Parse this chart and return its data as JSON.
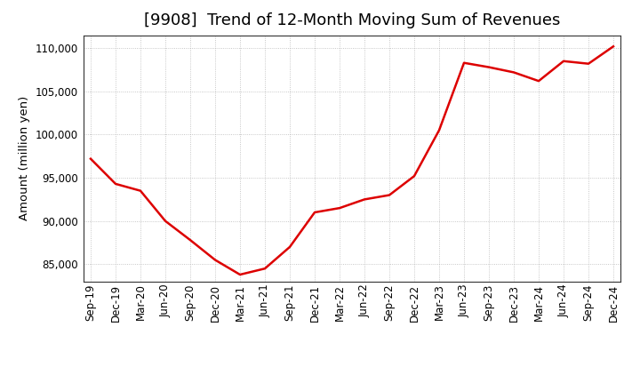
{
  "title": "[9908]  Trend of 12-Month Moving Sum of Revenues",
  "ylabel": "Amount (million yen)",
  "background_color": "#ffffff",
  "plot_background_color": "#ffffff",
  "line_color": "#dd0000",
  "line_width": 1.8,
  "x_labels": [
    "Sep-19",
    "Dec-19",
    "Mar-20",
    "Jun-20",
    "Sep-20",
    "Dec-20",
    "Mar-21",
    "Jun-21",
    "Sep-21",
    "Dec-21",
    "Mar-22",
    "Jun-22",
    "Sep-22",
    "Dec-22",
    "Mar-23",
    "Jun-23",
    "Sep-23",
    "Dec-23",
    "Mar-24",
    "Jun-24",
    "Sep-24",
    "Dec-24"
  ],
  "y_values": [
    97200,
    94300,
    93500,
    90000,
    87800,
    85500,
    83800,
    84500,
    87000,
    91000,
    91500,
    92500,
    93000,
    95200,
    100500,
    108300,
    107800,
    107200,
    106200,
    108500,
    108200,
    110200
  ],
  "ylim": [
    83000,
    111500
  ],
  "yticks": [
    85000,
    90000,
    95000,
    100000,
    105000,
    110000
  ],
  "ytick_labels": [
    "85,000",
    "90,000",
    "95,000",
    "100,000",
    "105,000",
    "110,000"
  ],
  "grid_color": "#999999",
  "title_fontsize": 13,
  "tick_fontsize": 8.5,
  "ylabel_fontsize": 9.5
}
